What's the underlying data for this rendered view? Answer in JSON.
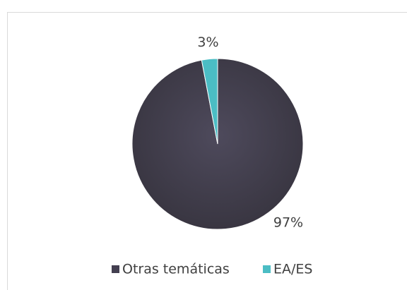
{
  "chart_data": {
    "type": "pie",
    "categories": [
      "Otras temáticas",
      "EA/ES"
    ],
    "values": [
      97,
      3
    ],
    "value_labels": [
      "97%",
      "3%"
    ],
    "colors": [
      "#433f50",
      "#4bbdc4"
    ],
    "legend": "bottom"
  }
}
